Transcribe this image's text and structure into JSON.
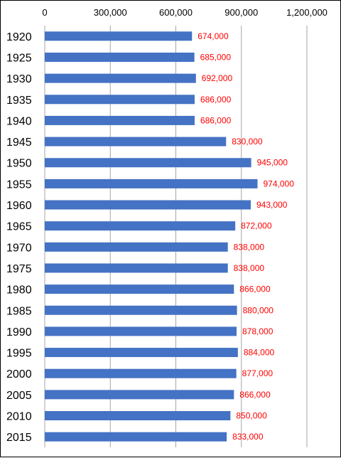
{
  "chart_data": {
    "type": "bar",
    "orientation": "horizontal",
    "categories": [
      "1920",
      "1925",
      "1930",
      "1935",
      "1940",
      "1945",
      "1950",
      "1955",
      "1960",
      "1965",
      "1970",
      "1975",
      "1980",
      "1985",
      "1990",
      "1995",
      "2000",
      "2005",
      "2010",
      "2015"
    ],
    "values": [
      674000,
      685000,
      692000,
      686000,
      686000,
      830000,
      945000,
      974000,
      943000,
      872000,
      838000,
      838000,
      866000,
      880000,
      878000,
      884000,
      877000,
      866000,
      850000,
      833000
    ],
    "data_labels": [
      "674,000",
      "685,000",
      "692,000",
      "686,000",
      "686,000",
      "830,000",
      "945,000",
      "974,000",
      "943,000",
      "872,000",
      "838,000",
      "838,000",
      "866,000",
      "880,000",
      "878,000",
      "884,000",
      "877,000",
      "866,000",
      "850,000",
      "833,000"
    ],
    "xlim": [
      0,
      1200000
    ],
    "x_ticks": [
      0,
      300000,
      600000,
      900000,
      1200000
    ],
    "x_tick_labels": [
      "0",
      "300,000",
      "600,000",
      "900,000",
      "1,200,000"
    ],
    "x_axis_position": "top",
    "grid": true,
    "colors": {
      "bar": "#4472C4",
      "data_label": "#FF0000",
      "grid": "#A6A6A6"
    }
  }
}
